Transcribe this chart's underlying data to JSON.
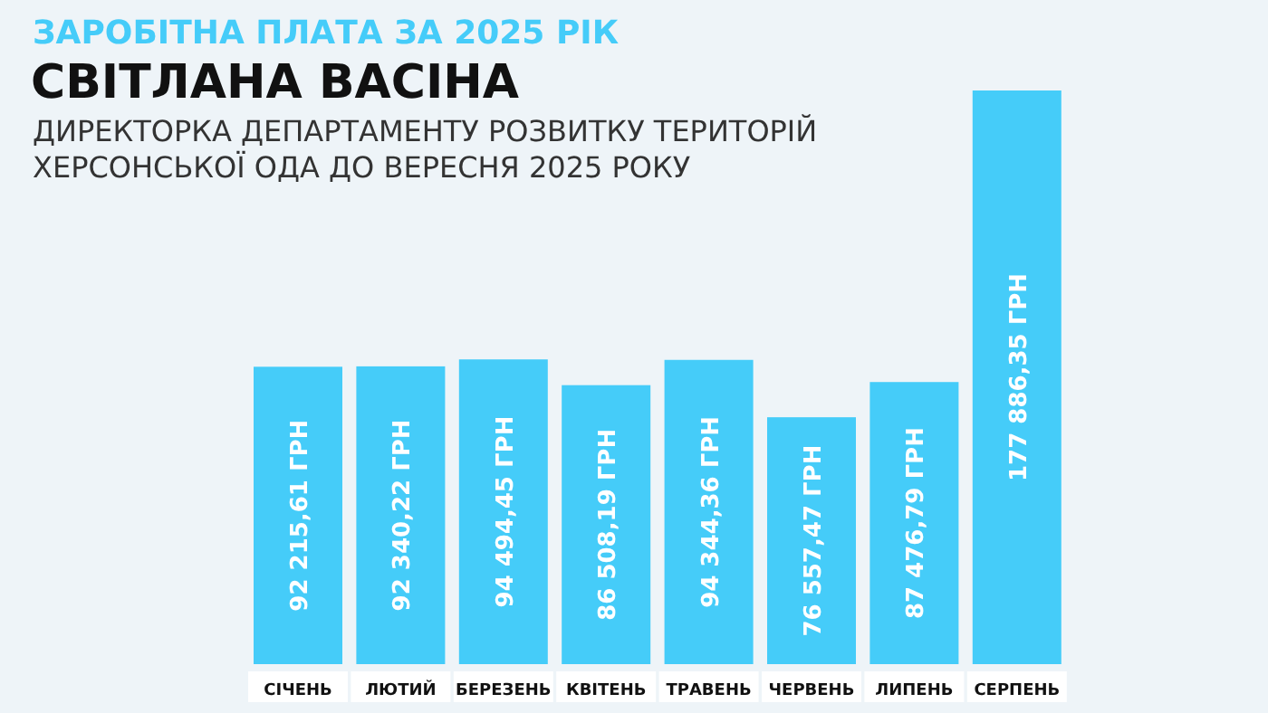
{
  "chart_data": {
    "type": "bar",
    "title": "ЗАРОБІТНА ПЛАТА ЗА 2025 РІК",
    "subtitle": "СВІТЛАНА ВАСІНА",
    "annotations": [
      "ДИРЕКТОРКА ДЕПАРТАМЕНТУ РОЗВИТКУ ТЕРИТОРІЙ",
      "ХЕРСОНСЬКОЇ ОДА ДО ВЕРЕСНЯ 2025 РОКУ"
    ],
    "categories": [
      "СІЧЕНЬ",
      "ЛЮТИЙ",
      "БЕРЕЗЕНЬ",
      "КВІТЕНЬ",
      "ТРАВЕНЬ",
      "ЧЕРВЕНЬ",
      "ЛИПЕНЬ",
      "СЕРПЕНЬ"
    ],
    "values": [
      92215.61,
      92340.22,
      94494.45,
      86508.19,
      94344.36,
      76557.47,
      87476.79,
      177886.35
    ],
    "value_labels": [
      "92 215,61 ГРН",
      "92 340,22 ГРН",
      "94 494,45 ГРН",
      "86 508,19 ГРН",
      "94 344,36 ГРН",
      "76 557,47 ГРН",
      "87 476,79 ГРН",
      "177 886,35 ГРН"
    ],
    "color": "#45ccf9"
  }
}
